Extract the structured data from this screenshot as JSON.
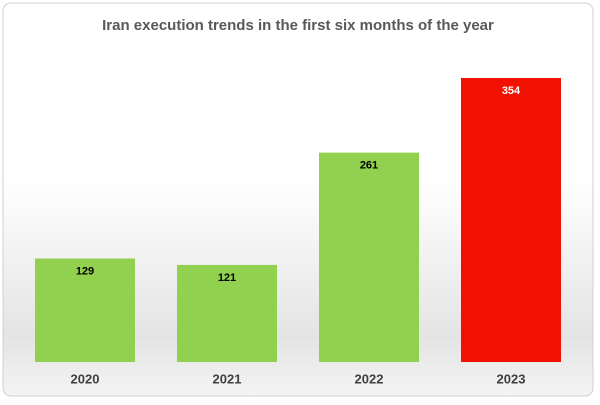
{
  "chart_data": {
    "type": "bar",
    "title": "Iran execution trends in the first six months of the year",
    "categories": [
      "2020",
      "2021",
      "2022",
      "2023"
    ],
    "values": [
      129,
      121,
      261,
      354
    ],
    "colors": [
      "#92d050",
      "#92d050",
      "#92d050",
      "#f21100"
    ]
  }
}
